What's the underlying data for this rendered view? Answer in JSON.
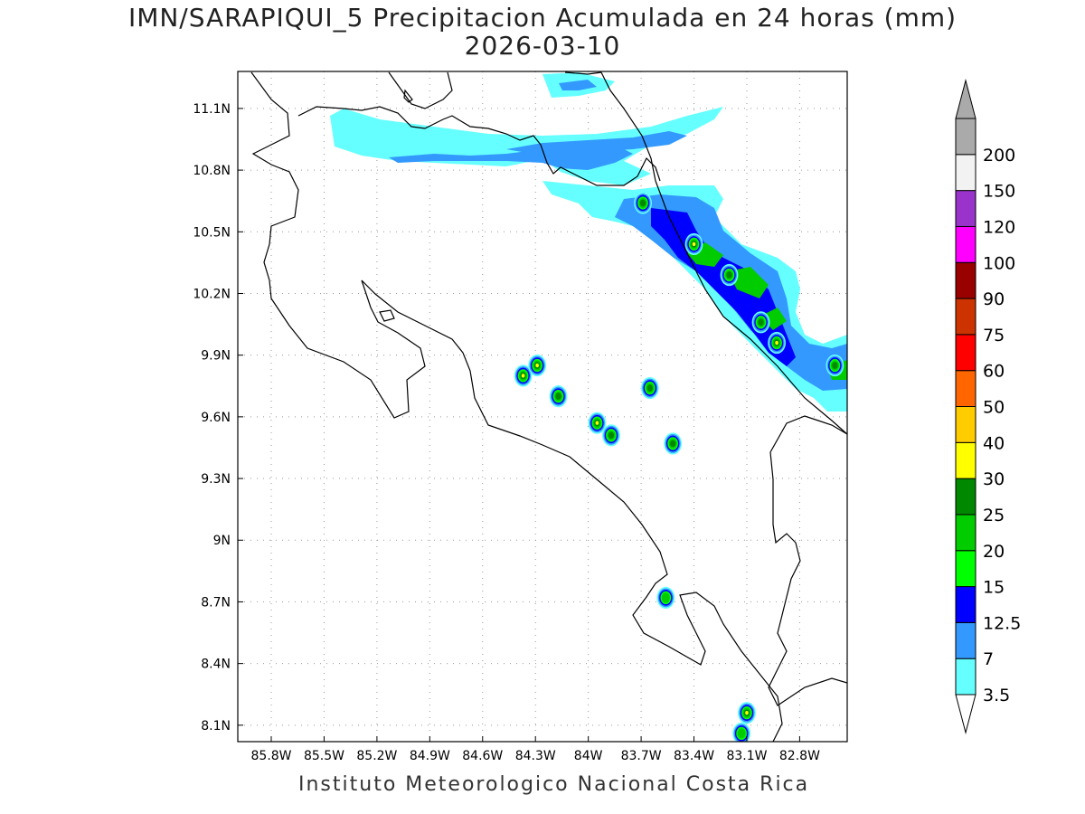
{
  "title_line1": "IMN/SARAPIQUI_5 Precipitacion Acumulada en 24 horas (mm)",
  "title_line2": "2026-03-10",
  "footer": "Instituto Meteorologico Nacional Costa Rica",
  "map": {
    "lon_range": [
      -85.99,
      -82.53
    ],
    "lat_range": [
      8.02,
      11.28
    ],
    "lon_ticks": [
      "85.8W",
      "85.5W",
      "85.2W",
      "84.9W",
      "84.6W",
      "84.3W",
      "84W",
      "83.7W",
      "83.4W",
      "83.1W",
      "82.8W"
    ],
    "lon_tick_values": [
      -85.8,
      -85.5,
      -85.2,
      -84.9,
      -84.6,
      -84.3,
      -84.0,
      -83.7,
      -83.4,
      -83.1,
      -82.8
    ],
    "lat_ticks": [
      "11.1N",
      "10.8N",
      "10.5N",
      "10.2N",
      "9.9N",
      "9.6N",
      "9.3N",
      "9N",
      "8.7N",
      "8.4N",
      "8.1N"
    ],
    "lat_tick_values": [
      11.1,
      10.8,
      10.5,
      10.2,
      9.9,
      9.6,
      9.3,
      9.0,
      8.7,
      8.4,
      8.1
    ],
    "grid": "dotted"
  },
  "colorbar": {
    "labels": [
      "3.5",
      "7",
      "12.5",
      "15",
      "20",
      "25",
      "30",
      "40",
      "50",
      "60",
      "75",
      "90",
      "100",
      "120",
      "150",
      "200"
    ],
    "colors": [
      "#66ffff",
      "#3399ff",
      "#0000ff",
      "#00ff00",
      "#00cc00",
      "#008800",
      "#ffff00",
      "#ffcc00",
      "#ff6600",
      "#ff0000",
      "#cc3300",
      "#990000",
      "#ff00ff",
      "#9933cc",
      "#f2f2f2",
      "#aaaaaa"
    ]
  },
  "rain_cells": [
    {
      "lon": -84.37,
      "lat": 9.8,
      "level": "30"
    },
    {
      "lon": -84.29,
      "lat": 9.85,
      "level": "30"
    },
    {
      "lon": -84.17,
      "lat": 9.7,
      "level": "25"
    },
    {
      "lon": -83.95,
      "lat": 9.57,
      "level": "30"
    },
    {
      "lon": -83.87,
      "lat": 9.51,
      "level": "25"
    },
    {
      "lon": -83.65,
      "lat": 9.74,
      "level": "25"
    },
    {
      "lon": -83.52,
      "lat": 9.47,
      "level": "25"
    },
    {
      "lon": -83.56,
      "lat": 8.72,
      "level": "20"
    },
    {
      "lon": -83.69,
      "lat": 10.64,
      "level": "25"
    },
    {
      "lon": -83.4,
      "lat": 10.44,
      "level": "40"
    },
    {
      "lon": -83.2,
      "lat": 10.29,
      "level": "25"
    },
    {
      "lon": -83.02,
      "lat": 10.06,
      "level": "25"
    },
    {
      "lon": -82.93,
      "lat": 9.96,
      "level": "40"
    },
    {
      "lon": -82.6,
      "lat": 9.85,
      "level": "25"
    },
    {
      "lon": -83.1,
      "lat": 8.16,
      "level": "30"
    },
    {
      "lon": -83.13,
      "lat": 8.06,
      "level": "20"
    }
  ]
}
